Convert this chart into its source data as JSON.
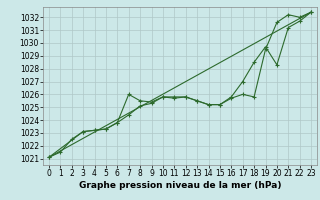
{
  "xlabel": "Graphe pression niveau de la mer (hPa)",
  "bg_color": "#cce8e8",
  "grid_color": "#b0c8c8",
  "line_color": "#2d6a2d",
  "x_ticks": [
    0,
    1,
    2,
    3,
    4,
    5,
    6,
    7,
    8,
    9,
    10,
    11,
    12,
    13,
    14,
    15,
    16,
    17,
    18,
    19,
    20,
    21,
    22,
    23
  ],
  "yticks": [
    1021,
    1022,
    1023,
    1024,
    1025,
    1026,
    1027,
    1028,
    1029,
    1030,
    1031,
    1032
  ],
  "ylim_low": 1020.5,
  "ylim_high": 1032.8,
  "line1_x": [
    0,
    1,
    2,
    3,
    4,
    5,
    6,
    7,
    8,
    9,
    10,
    11,
    12,
    13,
    14,
    15,
    16,
    17,
    18,
    19,
    20,
    21,
    22,
    23
  ],
  "line1_y": [
    1021.1,
    1021.5,
    1022.5,
    1023.1,
    1023.2,
    1023.3,
    1023.8,
    1024.4,
    1025.1,
    1025.3,
    1025.8,
    1025.8,
    1025.8,
    1025.5,
    1025.2,
    1025.2,
    1025.7,
    1026.0,
    1025.8,
    1029.5,
    1031.6,
    1032.2,
    1032.0,
    1032.4
  ],
  "line2_x": [
    0,
    3,
    4,
    5,
    6,
    7,
    8,
    9,
    10,
    11,
    12,
    13,
    14,
    15,
    16,
    17,
    18,
    19,
    20,
    21,
    22,
    23
  ],
  "line2_y": [
    1021.1,
    1023.1,
    1023.2,
    1023.3,
    1023.8,
    1026.0,
    1025.5,
    1025.4,
    1025.8,
    1025.7,
    1025.8,
    1025.5,
    1025.2,
    1025.2,
    1025.8,
    1027.0,
    1028.5,
    1029.7,
    1028.3,
    1031.2,
    1031.7,
    1032.4
  ],
  "line3_x": [
    0,
    23
  ],
  "line3_y": [
    1021.1,
    1032.4
  ],
  "tick_fontsize": 5.5,
  "label_fontsize": 6.5
}
